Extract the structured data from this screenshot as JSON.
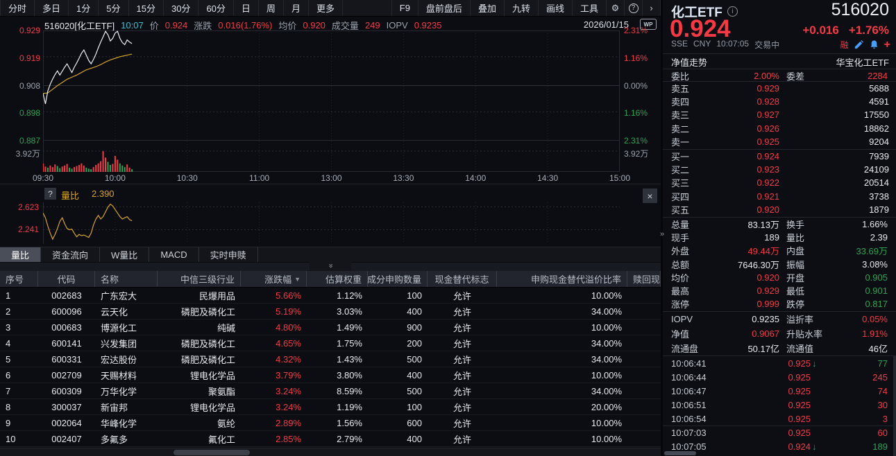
{
  "colors": {
    "red": "#f63a45",
    "green": "#2ba455",
    "yellow": "#d8a526",
    "cyan": "#33c3d5"
  },
  "topbar": {
    "items": [
      "分时",
      "多日",
      "1分",
      "5分",
      "15分",
      "30分",
      "60分",
      "日",
      "周",
      "月",
      "更多"
    ],
    "right_items": [
      "F9",
      "盘前盘后",
      "叠加",
      "九转",
      "画线",
      "工具"
    ],
    "gear_icon": "⚙",
    "help_icon": "?",
    "arrow_icon": "›"
  },
  "chart": {
    "header": {
      "symbol": "516020[化工ETF]",
      "time": "10:07",
      "price_label": "价",
      "price": "0.924",
      "change_label": "涨跌",
      "change": "0.016(1.76%)",
      "avg_label": "均价",
      "avg": "0.920",
      "volume_label": "成交量",
      "volume": "249",
      "iopv_label": "IOPV",
      "iopv": "0.9235",
      "date": "2026/01/15",
      "wp_badge": "WP"
    },
    "axes": {
      "y_left": [
        {
          "t": "0.929",
          "c": "red"
        },
        {
          "t": "0.919",
          "c": "red"
        },
        {
          "t": "0.908",
          "c": "gray"
        },
        {
          "t": "0.898",
          "c": "green"
        },
        {
          "t": "0.887",
          "c": "green"
        }
      ],
      "y_right": [
        {
          "t": "2.31%",
          "c": "red"
        },
        {
          "t": "1.16%",
          "c": "red"
        },
        {
          "t": "0.00%",
          "c": "gray"
        },
        {
          "t": "1.16%",
          "c": "green"
        },
        {
          "t": "2.31%",
          "c": "green"
        }
      ],
      "vol_label": "3.92万",
      "x_ticks": [
        "09:30",
        "10:00",
        "10:30",
        "11:00",
        "13:00",
        "13:30",
        "14:00",
        "14:30",
        "15:00"
      ]
    }
  },
  "chart_data": {
    "type": "line",
    "title": "516020 化工ETF 分时走势",
    "session_minutes": 240,
    "prev_close": 0.908,
    "y_min": 0.887,
    "y_max": 0.929,
    "volume_max_wan": 3.92,
    "price_series": [
      [
        0,
        0.905
      ],
      [
        1,
        0.901
      ],
      [
        2,
        0.906
      ],
      [
        3,
        0.9085
      ],
      [
        4,
        0.9105
      ],
      [
        5,
        0.9122
      ],
      [
        6,
        0.9136
      ],
      [
        7,
        0.912
      ],
      [
        8,
        0.9135
      ],
      [
        9,
        0.915
      ],
      [
        10,
        0.9163
      ],
      [
        11,
        0.9146
      ],
      [
        12,
        0.913
      ],
      [
        13,
        0.915
      ],
      [
        14,
        0.9166
      ],
      [
        15,
        0.9184
      ],
      [
        16,
        0.9203
      ],
      [
        17,
        0.9216
      ],
      [
        18,
        0.9196
      ],
      [
        19,
        0.9176
      ],
      [
        20,
        0.9163
      ],
      [
        21,
        0.918
      ],
      [
        22,
        0.92
      ],
      [
        23,
        0.9224
      ],
      [
        24,
        0.9246
      ],
      [
        25,
        0.9266
      ],
      [
        26,
        0.9287
      ],
      [
        27,
        0.9274
      ],
      [
        28,
        0.925
      ],
      [
        29,
        0.926
      ],
      [
        30,
        0.928
      ],
      [
        31,
        0.9287
      ],
      [
        32,
        0.926
      ],
      [
        33,
        0.9244
      ],
      [
        34,
        0.9236
      ],
      [
        35,
        0.9254
      ],
      [
        36,
        0.9246
      ],
      [
        37,
        0.924
      ]
    ],
    "avg_series": [
      [
        0,
        0.905
      ],
      [
        2,
        0.9052
      ],
      [
        4,
        0.9066
      ],
      [
        6,
        0.908
      ],
      [
        8,
        0.9092
      ],
      [
        10,
        0.9104
      ],
      [
        12,
        0.9112
      ],
      [
        14,
        0.912
      ],
      [
        16,
        0.913
      ],
      [
        18,
        0.914
      ],
      [
        20,
        0.9146
      ],
      [
        22,
        0.9152
      ],
      [
        24,
        0.916
      ],
      [
        26,
        0.917
      ],
      [
        28,
        0.9178
      ],
      [
        30,
        0.9184
      ],
      [
        32,
        0.919
      ],
      [
        34,
        0.9194
      ],
      [
        36,
        0.9198
      ],
      [
        37,
        0.92
      ]
    ],
    "volume_series": [
      [
        0,
        1.6,
        1
      ],
      [
        1,
        1.0,
        1
      ],
      [
        2,
        0.8,
        0
      ],
      [
        3,
        1.2,
        1
      ],
      [
        4,
        0.9,
        1
      ],
      [
        5,
        1.4,
        1
      ],
      [
        6,
        1.1,
        0
      ],
      [
        7,
        0.7,
        0
      ],
      [
        8,
        1.0,
        1
      ],
      [
        9,
        1.2,
        1
      ],
      [
        10,
        1.5,
        1
      ],
      [
        11,
        0.8,
        0
      ],
      [
        12,
        0.6,
        0
      ],
      [
        13,
        0.9,
        1
      ],
      [
        14,
        1.1,
        1
      ],
      [
        15,
        1.3,
        1
      ],
      [
        16,
        1.6,
        1
      ],
      [
        17,
        1.2,
        1
      ],
      [
        18,
        0.8,
        0
      ],
      [
        19,
        0.6,
        0
      ],
      [
        20,
        0.5,
        0
      ],
      [
        21,
        0.9,
        1
      ],
      [
        22,
        1.3,
        1
      ],
      [
        23,
        1.6,
        1
      ],
      [
        24,
        2.0,
        1
      ],
      [
        25,
        3.9,
        1
      ],
      [
        26,
        2.7,
        1
      ],
      [
        27,
        1.9,
        0
      ],
      [
        28,
        1.3,
        0
      ],
      [
        29,
        1.5,
        1
      ],
      [
        30,
        3.0,
        1
      ],
      [
        31,
        2.3,
        1
      ],
      [
        32,
        1.6,
        0
      ],
      [
        33,
        1.2,
        0
      ],
      [
        34,
        0.9,
        0
      ],
      [
        35,
        1.4,
        1
      ],
      [
        36,
        0.8,
        1
      ],
      [
        37,
        0.5,
        0
      ]
    ],
    "ratio_min": 2.0,
    "ratio_max": 2.7,
    "ratio_levels": [
      2.623,
      2.241
    ],
    "ratio_series": [
      [
        0,
        2.52
      ],
      [
        1,
        2.44
      ],
      [
        2,
        2.3
      ],
      [
        3,
        2.18
      ],
      [
        4,
        2.08
      ],
      [
        5,
        2.16
      ],
      [
        6,
        2.26
      ],
      [
        7,
        2.38
      ],
      [
        8,
        2.44
      ],
      [
        9,
        2.34
      ],
      [
        10,
        2.26
      ],
      [
        11,
        2.24
      ],
      [
        12,
        2.25
      ],
      [
        13,
        2.18
      ],
      [
        14,
        2.12
      ],
      [
        15,
        2.16
      ],
      [
        16,
        2.14
      ],
      [
        17,
        2.15
      ],
      [
        18,
        2.13
      ],
      [
        19,
        2.11
      ],
      [
        20,
        2.18
      ],
      [
        21,
        2.32
      ],
      [
        22,
        2.42
      ],
      [
        23,
        2.48
      ],
      [
        24,
        2.42
      ],
      [
        25,
        2.46
      ],
      [
        26,
        2.54
      ],
      [
        27,
        2.62
      ],
      [
        28,
        2.67
      ],
      [
        29,
        2.64
      ],
      [
        30,
        2.58
      ],
      [
        31,
        2.52
      ],
      [
        32,
        2.46
      ],
      [
        33,
        2.42
      ],
      [
        34,
        2.44
      ],
      [
        35,
        2.46
      ],
      [
        36,
        2.41
      ],
      [
        37,
        2.39
      ]
    ]
  },
  "subchart": {
    "help_icon": "?",
    "label": "量比",
    "value": "2.390",
    "y_labels": [
      "2.623",
      "2.241"
    ],
    "close_icon": "×"
  },
  "tabs": [
    {
      "label": "量比",
      "active": true
    },
    {
      "label": "资金流向",
      "active": false
    },
    {
      "label": "W量比",
      "active": false
    },
    {
      "label": "MACD",
      "active": false
    },
    {
      "label": "实时申赎",
      "active": false
    }
  ],
  "table": {
    "sort_icon": "▼",
    "headers": [
      "序号",
      "代码",
      "名称",
      "中信三级行业",
      "涨跌幅",
      "估算权重",
      "成分申购数量",
      "现金替代标志",
      "申购现金替代溢价比率",
      "赎回现"
    ],
    "rows": [
      {
        "idx": "1",
        "code": "002683",
        "name": "广东宏大",
        "industry": "民爆用品",
        "chg": "5.66%",
        "weight": "1.12%",
        "qty": "100",
        "flag": "允许",
        "premium": "10.00%"
      },
      {
        "idx": "2",
        "code": "600096",
        "name": "云天化",
        "industry": "磷肥及磷化工",
        "chg": "5.19%",
        "weight": "3.03%",
        "qty": "400",
        "flag": "允许",
        "premium": "34.00%"
      },
      {
        "idx": "3",
        "code": "000683",
        "name": "博源化工",
        "industry": "纯碱",
        "chg": "4.80%",
        "weight": "1.49%",
        "qty": "900",
        "flag": "允许",
        "premium": "10.00%"
      },
      {
        "idx": "4",
        "code": "600141",
        "name": "兴发集团",
        "industry": "磷肥及磷化工",
        "chg": "4.65%",
        "weight": "1.75%",
        "qty": "200",
        "flag": "允许",
        "premium": "34.00%"
      },
      {
        "idx": "5",
        "code": "600331",
        "name": "宏达股份",
        "industry": "磷肥及磷化工",
        "chg": "4.32%",
        "weight": "1.43%",
        "qty": "500",
        "flag": "允许",
        "premium": "34.00%"
      },
      {
        "idx": "6",
        "code": "002709",
        "name": "天赐材料",
        "industry": "锂电化学品",
        "chg": "3.79%",
        "weight": "3.80%",
        "qty": "400",
        "flag": "允许",
        "premium": "10.00%"
      },
      {
        "idx": "7",
        "code": "600309",
        "name": "万华化学",
        "industry": "聚氨酯",
        "chg": "3.24%",
        "weight": "8.59%",
        "qty": "500",
        "flag": "允许",
        "premium": "34.00%"
      },
      {
        "idx": "8",
        "code": "300037",
        "name": "新宙邦",
        "industry": "锂电化学品",
        "chg": "3.24%",
        "weight": "1.19%",
        "qty": "100",
        "flag": "允许",
        "premium": "20.00%"
      },
      {
        "idx": "9",
        "code": "002064",
        "name": "华峰化学",
        "industry": "氨纶",
        "chg": "2.89%",
        "weight": "1.56%",
        "qty": "600",
        "flag": "允许",
        "premium": "10.00%"
      },
      {
        "idx": "10",
        "code": "002407",
        "name": "多氟多",
        "industry": "氟化工",
        "chg": "2.85%",
        "weight": "2.79%",
        "qty": "400",
        "flag": "允许",
        "premium": "10.00%"
      }
    ]
  },
  "quote": {
    "name": "化工ETF",
    "info_icon": "i",
    "code": "516020",
    "price": "0.924",
    "change": "+0.016",
    "change_pct": "+1.76%",
    "exchange": "SSE",
    "currency": "CNY",
    "time": "10:07:05",
    "status": "交易中",
    "margin_badge": "融",
    "plus_icon": "+",
    "nav_label": "净值走势",
    "nav_name": "华宝化工ETF",
    "weibi_label": "委比",
    "weibi": "2.00%",
    "weicha_label": "委差",
    "weicha": "2284",
    "asks": [
      {
        "label": "卖五",
        "price": "0.929",
        "vol": "5688"
      },
      {
        "label": "卖四",
        "price": "0.928",
        "vol": "4591"
      },
      {
        "label": "卖三",
        "price": "0.927",
        "vol": "17550"
      },
      {
        "label": "卖二",
        "price": "0.926",
        "vol": "18862"
      },
      {
        "label": "卖一",
        "price": "0.925",
        "vol": "9204"
      }
    ],
    "bids": [
      {
        "label": "买一",
        "price": "0.924",
        "vol": "7939"
      },
      {
        "label": "买二",
        "price": "0.923",
        "vol": "24109"
      },
      {
        "label": "买三",
        "price": "0.922",
        "vol": "20514"
      },
      {
        "label": "买四",
        "price": "0.921",
        "vol": "3738"
      },
      {
        "label": "买五",
        "price": "0.920",
        "vol": "1879"
      }
    ],
    "stats": [
      {
        "l1": "总量",
        "v1": "83.13万",
        "c1": "w",
        "l2": "换手",
        "v2": "1.66%",
        "c2": "w"
      },
      {
        "l1": "现手",
        "v1": "189",
        "c1": "w",
        "l2": "量比",
        "v2": "2.39",
        "c2": "w"
      },
      {
        "l1": "外盘",
        "v1": "49.44万",
        "c1": "r",
        "l2": "内盘",
        "v2": "33.69万",
        "c2": "g"
      },
      {
        "l1": "总额",
        "v1": "7646.30万",
        "c1": "w",
        "l2": "振幅",
        "v2": "3.08%",
        "c2": "w"
      },
      {
        "l1": "均价",
        "v1": "0.920",
        "c1": "r",
        "l2": "开盘",
        "v2": "0.905",
        "c2": "g"
      },
      {
        "l1": "最高",
        "v1": "0.929",
        "c1": "r",
        "l2": "最低",
        "v2": "0.901",
        "c2": "g"
      },
      {
        "l1": "涨停",
        "v1": "0.999",
        "c1": "r",
        "l2": "跌停",
        "v2": "0.817",
        "c2": "g"
      }
    ],
    "stats2": [
      {
        "l1": "IOPV",
        "v1": "0.9235",
        "c1": "w",
        "l2": "溢折率",
        "v2": "0.05%",
        "c2": "r"
      },
      {
        "l1": "净值",
        "v1": "0.9067",
        "c1": "r",
        "l2": "升贴水率",
        "v2": "1.91%",
        "c2": "r"
      },
      {
        "l1": "流通盘",
        "v1": "50.17亿",
        "c1": "w",
        "l2": "流通值",
        "v2": "46亿",
        "c2": "w"
      }
    ],
    "ticks": [
      {
        "time": "10:06:41",
        "price": "0.925",
        "arrow": "↓",
        "vol": "77",
        "vc": "g",
        "sep": false
      },
      {
        "time": "10:06:44",
        "price": "0.925",
        "arrow": "",
        "vol": "245",
        "vc": "r",
        "sep": false
      },
      {
        "time": "10:06:47",
        "price": "0.925",
        "arrow": "",
        "vol": "74",
        "vc": "r",
        "sep": false
      },
      {
        "time": "10:06:51",
        "price": "0.925",
        "arrow": "",
        "vol": "30",
        "vc": "r",
        "sep": false
      },
      {
        "time": "10:06:54",
        "price": "0.925",
        "arrow": "",
        "vol": "3",
        "vc": "r",
        "sep": false
      },
      {
        "time": "10:07:03",
        "price": "0.925",
        "arrow": "",
        "vol": "60",
        "vc": "r",
        "sep": true
      },
      {
        "time": "10:07:05",
        "price": "0.924",
        "arrow": "↓",
        "vol": "189",
        "vc": "g",
        "sep": false
      }
    ]
  }
}
